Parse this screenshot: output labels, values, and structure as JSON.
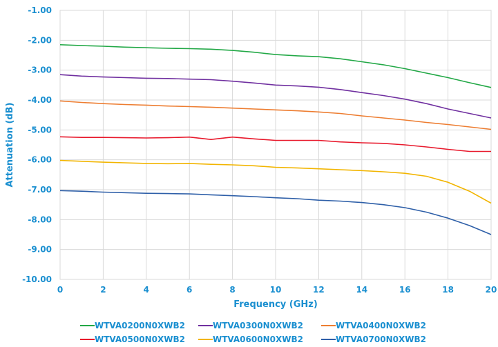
{
  "chart_data": {
    "type": "line",
    "title": "",
    "xlabel": "Frequency (GHz)",
    "ylabel": "Attenuation (dB)",
    "xlim": [
      0,
      20
    ],
    "ylim": [
      -10,
      -1
    ],
    "x_ticks": [
      0,
      2,
      4,
      6,
      8,
      10,
      12,
      14,
      16,
      18,
      20
    ],
    "x_tick_labels": [
      "0",
      "2",
      "4",
      "6",
      "8",
      "10",
      "12",
      "14",
      "16",
      "18",
      "20"
    ],
    "y_ticks": [
      -1,
      -2,
      -3,
      -4,
      -5,
      -6,
      -7,
      -8,
      -9,
      -10
    ],
    "y_tick_labels": [
      "-1.00",
      "-2.00",
      "-3.00",
      "-4.00",
      "-5.00",
      "-6.00",
      "-7.00",
      "-8.00",
      "-9.00",
      "-10.00"
    ],
    "grid": true,
    "legend_position": "bottom",
    "x": [
      0,
      1,
      2,
      3,
      4,
      5,
      6,
      7,
      8,
      9,
      10,
      11,
      12,
      13,
      14,
      15,
      16,
      17,
      18,
      19,
      20
    ],
    "series": [
      {
        "name": "WTVA0200N0XWB2",
        "color": "#22a846",
        "values": [
          -2.15,
          -2.18,
          -2.2,
          -2.23,
          -2.25,
          -2.27,
          -2.28,
          -2.3,
          -2.34,
          -2.4,
          -2.48,
          -2.52,
          -2.55,
          -2.62,
          -2.72,
          -2.82,
          -2.95,
          -3.1,
          -3.25,
          -3.42,
          -3.58
        ]
      },
      {
        "name": "WTVA0300N0XWB2",
        "color": "#7030a0",
        "values": [
          -3.15,
          -3.2,
          -3.23,
          -3.25,
          -3.27,
          -3.28,
          -3.3,
          -3.32,
          -3.37,
          -3.43,
          -3.5,
          -3.53,
          -3.57,
          -3.65,
          -3.75,
          -3.85,
          -3.97,
          -4.12,
          -4.3,
          -4.45,
          -4.6
        ]
      },
      {
        "name": "WTVA0400N0XWB2",
        "color": "#ed7d31",
        "values": [
          -4.03,
          -4.08,
          -4.12,
          -4.15,
          -4.17,
          -4.2,
          -4.22,
          -4.24,
          -4.27,
          -4.3,
          -4.33,
          -4.36,
          -4.4,
          -4.45,
          -4.53,
          -4.6,
          -4.67,
          -4.75,
          -4.82,
          -4.9,
          -4.98
        ]
      },
      {
        "name": "WTVA0500N0XWB2",
        "color": "#e8192c",
        "values": [
          -5.23,
          -5.25,
          -5.25,
          -5.26,
          -5.27,
          -5.26,
          -5.24,
          -5.32,
          -5.24,
          -5.3,
          -5.35,
          -5.35,
          -5.35,
          -5.4,
          -5.43,
          -5.45,
          -5.5,
          -5.57,
          -5.65,
          -5.72,
          -5.72
        ]
      },
      {
        "name": "WTVA0600N0XWB2",
        "color": "#f2b500",
        "values": [
          -6.02,
          -6.05,
          -6.08,
          -6.1,
          -6.12,
          -6.13,
          -6.12,
          -6.15,
          -6.17,
          -6.2,
          -6.25,
          -6.27,
          -6.3,
          -6.33,
          -6.36,
          -6.4,
          -6.45,
          -6.55,
          -6.75,
          -7.05,
          -7.45
        ]
      },
      {
        "name": "WTVA0700N0XWB2",
        "color": "#2e5fa8",
        "values": [
          -7.03,
          -7.05,
          -7.08,
          -7.1,
          -7.12,
          -7.13,
          -7.14,
          -7.17,
          -7.2,
          -7.23,
          -7.27,
          -7.3,
          -7.35,
          -7.38,
          -7.43,
          -7.5,
          -7.6,
          -7.75,
          -7.95,
          -8.2,
          -8.5
        ]
      }
    ]
  }
}
